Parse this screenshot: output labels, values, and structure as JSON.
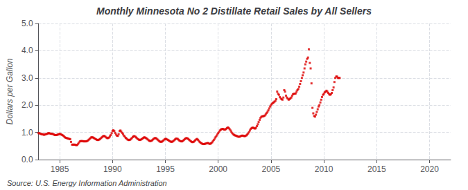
{
  "chart_data": {
    "type": "scatter",
    "title": "Monthly Minnesota No 2 Distillate Retail Sales by All Sellers",
    "ylabel": "Dollars per Gallon",
    "annotation": "Source: U.S. Energy Information Administration",
    "xlim": [
      1983,
      2022
    ],
    "ylim": [
      0.0,
      5.0
    ],
    "xticks": [
      1985,
      1990,
      1995,
      2000,
      2005,
      2010,
      2015,
      2020
    ],
    "yticks": [
      {
        "value": 0.0,
        "label": "0.0"
      },
      {
        "value": 1.0,
        "label": "1.0"
      },
      {
        "value": 2.0,
        "label": "2.0"
      },
      {
        "value": 3.0,
        "label": "3.0"
      },
      {
        "value": 4.0,
        "label": "4.0"
      },
      {
        "value": 5.0,
        "label": "5.0"
      }
    ],
    "grid": true,
    "color": "#dd0000",
    "marker": "square",
    "x": [
      1983.0,
      1983.08,
      1983.17,
      1983.25,
      1983.33,
      1983.42,
      1983.5,
      1983.58,
      1983.67,
      1983.75,
      1983.83,
      1983.92,
      1984.0,
      1984.08,
      1984.17,
      1984.25,
      1984.33,
      1984.42,
      1984.5,
      1984.58,
      1984.67,
      1984.75,
      1984.83,
      1984.92,
      1985.0,
      1985.08,
      1985.17,
      1985.25,
      1985.33,
      1985.42,
      1985.5,
      1985.58,
      1985.67,
      1985.75,
      1985.83,
      1985.92,
      1986.0,
      1986.08,
      1986.17,
      1986.25,
      1986.33,
      1986.42,
      1986.5,
      1986.58,
      1986.67,
      1986.75,
      1986.83,
      1986.92,
      1987.0,
      1987.08,
      1987.17,
      1987.25,
      1987.33,
      1987.42,
      1987.5,
      1987.58,
      1987.67,
      1987.75,
      1987.83,
      1987.92,
      1988.0,
      1988.08,
      1988.17,
      1988.25,
      1988.33,
      1988.42,
      1988.5,
      1988.58,
      1988.67,
      1988.75,
      1988.83,
      1988.92,
      1989.0,
      1989.08,
      1989.17,
      1989.25,
      1989.33,
      1989.42,
      1989.5,
      1989.58,
      1989.67,
      1989.75,
      1989.83,
      1989.92,
      1990.0,
      1990.08,
      1990.17,
      1990.25,
      1990.33,
      1990.42,
      1990.5,
      1990.58,
      1990.67,
      1990.75,
      1990.83,
      1990.92,
      1991.0,
      1991.08,
      1991.17,
      1991.25,
      1991.33,
      1991.42,
      1991.5,
      1991.58,
      1991.67,
      1991.75,
      1991.83,
      1991.92,
      1992.0,
      1992.08,
      1992.17,
      1992.25,
      1992.33,
      1992.42,
      1992.5,
      1992.58,
      1992.67,
      1992.75,
      1992.83,
      1992.92,
      1993.0,
      1993.08,
      1993.17,
      1993.25,
      1993.33,
      1993.42,
      1993.5,
      1993.58,
      1993.67,
      1993.75,
      1993.83,
      1993.92,
      1994.0,
      1994.08,
      1994.17,
      1994.25,
      1994.33,
      1994.42,
      1994.5,
      1994.58,
      1994.67,
      1994.75,
      1994.83,
      1994.92,
      1995.0,
      1995.08,
      1995.17,
      1995.25,
      1995.33,
      1995.42,
      1995.5,
      1995.58,
      1995.67,
      1995.75,
      1995.83,
      1995.92,
      1996.0,
      1996.08,
      1996.17,
      1996.25,
      1996.33,
      1996.42,
      1996.5,
      1996.58,
      1996.67,
      1996.75,
      1996.83,
      1996.92,
      1997.0,
      1997.08,
      1997.17,
      1997.25,
      1997.33,
      1997.42,
      1997.5,
      1997.58,
      1997.67,
      1997.75,
      1997.83,
      1997.92,
      1998.0,
      1998.08,
      1998.17,
      1998.25,
      1998.33,
      1998.42,
      1998.5,
      1998.58,
      1998.67,
      1998.75,
      1998.83,
      1998.92,
      1999.0,
      1999.08,
      1999.17,
      1999.25,
      1999.33,
      1999.42,
      1999.5,
      1999.58,
      1999.67,
      1999.75,
      1999.83,
      1999.92,
      2000.0,
      2000.08,
      2000.17,
      2000.25,
      2000.33,
      2000.42,
      2000.5,
      2000.58,
      2000.67,
      2000.75,
      2000.83,
      2000.92,
      2001.0,
      2001.08,
      2001.17,
      2001.25,
      2001.33,
      2001.42,
      2001.5,
      2001.58,
      2001.67,
      2001.75,
      2001.83,
      2001.92,
      2002.0,
      2002.08,
      2002.17,
      2002.25,
      2002.33,
      2002.42,
      2002.5,
      2002.58,
      2002.67,
      2002.75,
      2002.83,
      2002.92,
      2003.0,
      2003.08,
      2003.17,
      2003.25,
      2003.33,
      2003.42,
      2003.5,
      2003.58,
      2003.67,
      2003.75,
      2003.83,
      2003.92,
      2004.0,
      2004.08,
      2004.17,
      2004.25,
      2004.33,
      2004.42,
      2004.5,
      2004.58,
      2004.67,
      2004.75,
      2004.83,
      2004.92,
      2005.0,
      2005.08,
      2005.17,
      2005.25,
      2005.33,
      2005.42,
      2005.5,
      2005.58,
      2005.67,
      2005.75,
      2005.83,
      2005.92,
      2006.0,
      2006.08,
      2006.17,
      2006.25,
      2006.33,
      2006.42,
      2006.5,
      2006.58,
      2006.67,
      2006.75,
      2006.83,
      2006.92,
      2007.0,
      2007.08,
      2007.17,
      2007.25,
      2007.33,
      2007.42,
      2007.5,
      2007.58,
      2007.67,
      2007.75,
      2007.83,
      2007.92,
      2008.0,
      2008.08,
      2008.17,
      2008.25,
      2008.33,
      2008.42,
      2008.5,
      2008.58,
      2008.67,
      2008.75,
      2008.83,
      2008.92,
      2009.0,
      2009.08,
      2009.17,
      2009.25,
      2009.33,
      2009.42,
      2009.5,
      2009.58,
      2009.67,
      2009.75,
      2009.83,
      2009.92,
      2010.0,
      2010.08,
      2010.17,
      2010.25,
      2010.33,
      2010.42,
      2010.5,
      2010.58,
      2010.67,
      2010.75,
      2010.83,
      2010.92,
      2011.0,
      2011.08,
      2011.17,
      2011.25,
      2011.33,
      2011.42,
      2011.5
    ],
    "values": [
      0.97,
      0.97,
      0.95,
      0.94,
      0.93,
      0.93,
      0.91,
      0.92,
      0.93,
      0.94,
      0.95,
      0.97,
      0.97,
      0.96,
      0.95,
      0.95,
      0.94,
      0.93,
      0.91,
      0.9,
      0.9,
      0.91,
      0.92,
      0.93,
      0.95,
      0.93,
      0.92,
      0.9,
      0.88,
      0.85,
      0.82,
      0.8,
      0.79,
      0.78,
      0.77,
      0.76,
      0.75,
      0.65,
      0.55,
      0.55,
      0.55,
      0.55,
      0.54,
      0.53,
      0.54,
      0.58,
      0.63,
      0.67,
      0.68,
      0.68,
      0.68,
      0.67,
      0.67,
      0.67,
      0.67,
      0.68,
      0.7,
      0.73,
      0.76,
      0.79,
      0.82,
      0.82,
      0.81,
      0.79,
      0.77,
      0.75,
      0.73,
      0.72,
      0.72,
      0.74,
      0.76,
      0.79,
      0.82,
      0.85,
      0.87,
      0.86,
      0.84,
      0.81,
      0.79,
      0.79,
      0.81,
      0.85,
      0.9,
      0.97,
      1.05,
      1.08,
      1.05,
      0.98,
      0.92,
      0.88,
      0.87,
      0.93,
      1.05,
      1.07,
      1.03,
      0.98,
      0.93,
      0.88,
      0.84,
      0.8,
      0.77,
      0.74,
      0.72,
      0.72,
      0.73,
      0.76,
      0.79,
      0.83,
      0.86,
      0.86,
      0.84,
      0.81,
      0.78,
      0.75,
      0.73,
      0.72,
      0.73,
      0.75,
      0.77,
      0.8,
      0.82,
      0.81,
      0.79,
      0.77,
      0.74,
      0.71,
      0.69,
      0.68,
      0.69,
      0.71,
      0.74,
      0.77,
      0.79,
      0.79,
      0.77,
      0.74,
      0.71,
      0.68,
      0.66,
      0.65,
      0.66,
      0.68,
      0.71,
      0.74,
      0.76,
      0.76,
      0.74,
      0.72,
      0.7,
      0.68,
      0.66,
      0.65,
      0.66,
      0.68,
      0.71,
      0.74,
      0.77,
      0.77,
      0.76,
      0.73,
      0.7,
      0.68,
      0.67,
      0.67,
      0.69,
      0.72,
      0.75,
      0.78,
      0.79,
      0.78,
      0.76,
      0.73,
      0.7,
      0.67,
      0.65,
      0.64,
      0.65,
      0.68,
      0.71,
      0.74,
      0.76,
      0.73,
      0.69,
      0.65,
      0.62,
      0.6,
      0.58,
      0.57,
      0.57,
      0.58,
      0.59,
      0.6,
      0.61,
      0.6,
      0.58,
      0.58,
      0.6,
      0.63,
      0.67,
      0.72,
      0.77,
      0.82,
      0.87,
      0.92,
      0.97,
      1.02,
      1.07,
      1.1,
      1.12,
      1.13,
      1.12,
      1.1,
      1.1,
      1.13,
      1.16,
      1.18,
      1.16,
      1.12,
      1.07,
      1.02,
      0.97,
      0.93,
      0.91,
      0.89,
      0.88,
      0.87,
      0.85,
      0.84,
      0.84,
      0.85,
      0.87,
      0.88,
      0.88,
      0.87,
      0.86,
      0.87,
      0.89,
      0.92,
      0.96,
      1.01,
      1.07,
      1.13,
      1.16,
      1.17,
      1.17,
      1.15,
      1.14,
      1.17,
      1.23,
      1.3,
      1.38,
      1.46,
      1.53,
      1.57,
      1.59,
      1.59,
      1.6,
      1.62,
      1.66,
      1.71,
      1.76,
      1.81,
      1.88,
      1.95,
      2.0,
      2.05,
      2.08,
      2.1,
      2.13,
      2.16,
      2.22,
      2.5,
      2.42,
      2.38,
      2.3,
      2.25,
      2.22,
      2.2,
      2.28,
      2.55,
      2.5,
      2.35,
      2.28,
      2.24,
      2.2,
      2.22,
      2.25,
      2.28,
      2.35,
      2.4,
      2.42,
      2.42,
      2.43,
      2.5,
      2.55,
      2.6,
      2.68,
      2.78,
      2.88,
      3.0,
      3.1,
      3.2,
      3.35,
      3.5,
      3.6,
      3.7,
      3.75,
      4.05,
      3.55,
      3.35,
      2.8,
      1.9,
      1.7,
      1.6,
      1.58,
      1.65,
      1.75,
      1.85,
      1.95,
      2.0,
      2.1,
      2.2,
      2.3,
      2.38,
      2.42,
      2.47,
      2.5,
      2.53,
      2.5,
      2.45,
      2.4,
      2.38,
      2.4,
      2.45,
      2.55,
      2.65,
      2.85,
      3.0,
      3.05,
      3.05,
      3.0,
      3.0,
      3.0
    ]
  }
}
